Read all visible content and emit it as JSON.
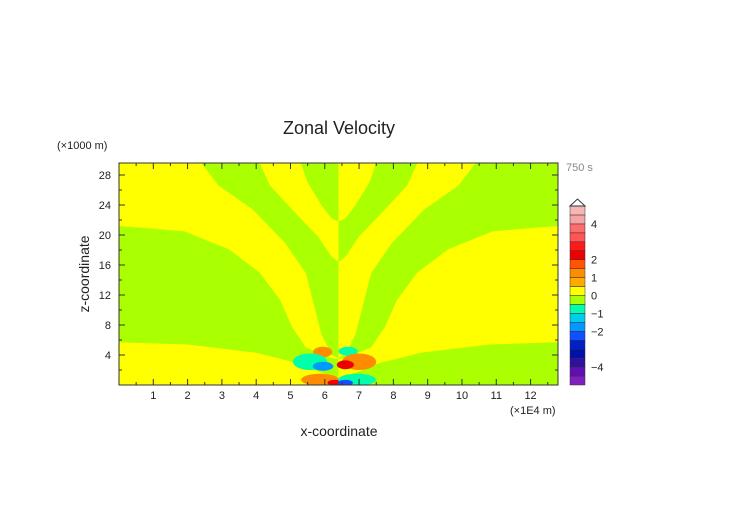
{
  "chart_data": {
    "type": "heatmap",
    "title": "Zonal Velocity",
    "xlabel": "x-coordinate",
    "ylabel": "z-coordinate",
    "x_units_label": "(×1E4 m)",
    "y_units_label": "(×1000 m)",
    "time_label": "750 s",
    "xlim": [
      0,
      12.8
    ],
    "ylim": [
      0,
      29.6
    ],
    "x_ticks": [
      "1",
      "2",
      "3",
      "4",
      "5",
      "6",
      "7",
      "8",
      "9",
      "10",
      "11",
      "12"
    ],
    "y_ticks": [
      "4",
      "8",
      "12",
      "16",
      "20",
      "24",
      "28"
    ],
    "center_x": 6.4,
    "background_level_color": "#ffff00",
    "negative_small_color": "#aaff00",
    "left_half_negative_regions": [
      [
        [
          0,
          5.7
        ],
        [
          2,
          5.4
        ],
        [
          4,
          4.3
        ],
        [
          5.3,
          2.8
        ],
        [
          5.8,
          1.8
        ],
        [
          6.2,
          1.2
        ],
        [
          6.4,
          1.0
        ],
        [
          6.4,
          3.4
        ],
        [
          6.2,
          3.6
        ],
        [
          5.45,
          5.0
        ],
        [
          5.05,
          7.7
        ],
        [
          4.7,
          11.3
        ],
        [
          4.1,
          15.0
        ],
        [
          3.2,
          18.1
        ],
        [
          1.9,
          20.5
        ],
        [
          0,
          21.2
        ]
      ],
      [
        [
          2.4,
          29.6
        ],
        [
          2.9,
          26.6
        ],
        [
          3.9,
          23.4
        ],
        [
          4.85,
          18.9
        ],
        [
          5.45,
          14.9
        ],
        [
          5.7,
          10.4
        ],
        [
          5.9,
          6.8
        ],
        [
          6.2,
          4.0
        ],
        [
          6.4,
          3.6
        ],
        [
          6.4,
          16.4
        ],
        [
          6.2,
          17.1
        ],
        [
          5.8,
          19.8
        ],
        [
          5.15,
          22.9
        ],
        [
          4.4,
          26.6
        ],
        [
          4.1,
          29.6
        ]
      ],
      [
        [
          5.3,
          29.6
        ],
        [
          5.5,
          27
        ],
        [
          5.9,
          24
        ],
        [
          6.2,
          22.2
        ],
        [
          6.4,
          21.8
        ],
        [
          6.4,
          29.6
        ]
      ]
    ],
    "symmetry": "antisymmetric about center_x",
    "anomalies": [
      {
        "x": 5.94,
        "z": 4.4,
        "rx": 0.28,
        "rz": 0.7,
        "value": 1.0
      },
      {
        "x": 6.68,
        "z": 4.5,
        "rx": 0.28,
        "rz": 0.6,
        "value": -0.8
      },
      {
        "x": 5.57,
        "z": 3.1,
        "rx": 0.5,
        "rz": 1.1,
        "value": -0.8
      },
      {
        "x": 5.95,
        "z": 2.5,
        "rx": 0.3,
        "rz": 0.6,
        "value": -1.8
      },
      {
        "x": 7.0,
        "z": 3.1,
        "rx": 0.5,
        "rz": 1.1,
        "value": 1.2
      },
      {
        "x": 6.6,
        "z": 2.7,
        "rx": 0.25,
        "rz": 0.6,
        "value": 2.2
      },
      {
        "x": 5.86,
        "z": 0.7,
        "rx": 0.55,
        "rz": 0.8,
        "value": 1.2
      },
      {
        "x": 6.3,
        "z": 0.3,
        "rx": 0.22,
        "rz": 0.4,
        "value": 2.2
      },
      {
        "x": 6.94,
        "z": 0.7,
        "rx": 0.55,
        "rz": 0.8,
        "value": -0.8
      },
      {
        "x": 6.6,
        "z": 0.3,
        "rx": 0.22,
        "rz": 0.4,
        "value": -2.2
      }
    ],
    "colorbar": {
      "min": -5,
      "max": 5,
      "step": 0.5,
      "labels": [
        "4",
        "2",
        "1",
        "0",
        "−1",
        "−2",
        "−4"
      ],
      "label_values": [
        4,
        2,
        1,
        0,
        -1,
        -2,
        -4
      ],
      "colors": [
        "#8020c0",
        "#6010b0",
        "#3010a0",
        "#0010aa",
        "#0020cc",
        "#1050ff",
        "#0099ff",
        "#00ccee",
        "#00ffaa",
        "#aaff00",
        "#ffff00",
        "#ffaa00",
        "#ff8c00",
        "#ff5500",
        "#ee0000",
        "#ff1a1a",
        "#ff5555",
        "#ff6a6a",
        "#f5a3a3",
        "#f7b5b5"
      ]
    }
  }
}
